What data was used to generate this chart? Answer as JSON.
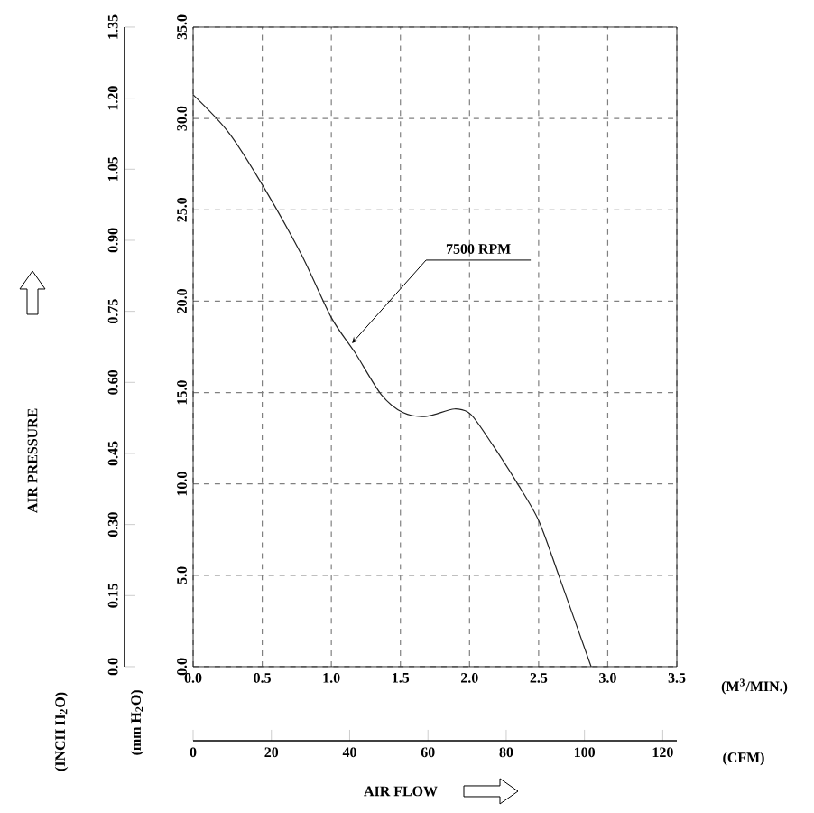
{
  "chart_data": {
    "type": "line",
    "annotations": [
      "AIR PRESSURE",
      "AIR FLOW",
      "(mm H$_{2}$O)",
      "(INCH H$_{2}$O)",
      "(M$^{3}$/MIN.)",
      "(CFM)",
      {
        "text": "7500 RPM",
        "x": 1.15,
        "y": 17.7
      }
    ],
    "x": [
      0,
      0.25,
      0.49,
      0.78,
      1.0,
      1.17,
      1.36,
      1.52,
      1.69,
      1.89,
      2.01,
      2.17,
      2.34,
      2.5,
      2.65,
      2.88
    ],
    "series": [
      {
        "color": "#222222",
        "values": [
          31.3,
          29.3,
          26.5,
          22.6,
          19.1,
          17.2,
          14.9,
          13.9,
          13.7,
          14.1,
          13.8,
          12.1,
          10.1,
          8.0,
          4.9,
          0
        ]
      }
    ],
    "xlim": [
      0,
      3.5
    ],
    "ylim": [
      0,
      35
    ],
    "xticks": [
      {
        "value": 0,
        "label": "0.0"
      },
      {
        "value": 0.5,
        "label": "0.5"
      },
      {
        "value": 1,
        "label": "1.0"
      },
      {
        "value": 1.5,
        "label": "1.5"
      },
      {
        "value": 2,
        "label": "2.0"
      },
      {
        "value": 2.5,
        "label": "2.5"
      },
      {
        "value": 3,
        "label": "3.0"
      },
      {
        "value": 3.5,
        "label": "3.5"
      }
    ],
    "yticks": [
      {
        "value": 0,
        "label": "0.0"
      },
      {
        "value": 5,
        "label": "5.0"
      },
      {
        "value": 10,
        "label": "10.0"
      },
      {
        "value": 15,
        "label": "15.0"
      },
      {
        "value": 20,
        "label": "20.0"
      },
      {
        "value": 25,
        "label": "25.0"
      },
      {
        "value": 30,
        "label": "30.0"
      },
      {
        "value": 35,
        "label": "35.0"
      }
    ],
    "y2lim": [
      0,
      1.35
    ],
    "y2ticks": [
      {
        "value": 0,
        "label": "0.0"
      },
      0.15,
      {
        "value": 0.3,
        "label": "0.30"
      },
      0.45,
      {
        "value": 0.6,
        "label": "0.60"
      },
      0.75,
      {
        "value": 0.9,
        "label": "0.90"
      },
      1.05,
      {
        "value": 1.2,
        "label": "1.20"
      },
      1.35
    ],
    "x2lim": [
      0,
      123.6
    ],
    "x2ticks": [
      0,
      20,
      40,
      60,
      80,
      100,
      120
    ],
    "grid": true,
    "line_style": "solid",
    "marker": "none"
  }
}
